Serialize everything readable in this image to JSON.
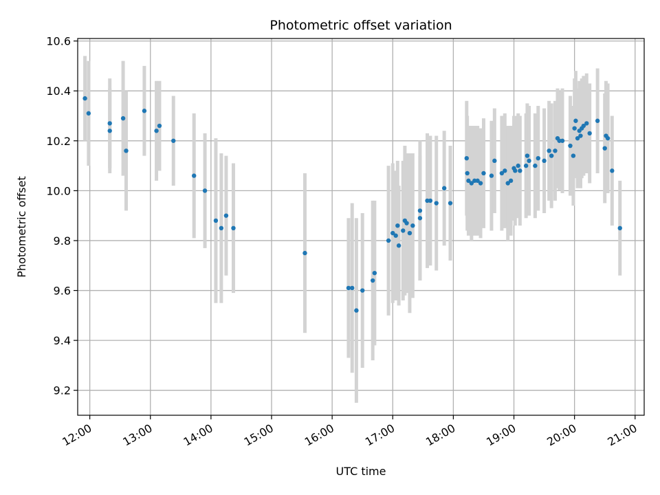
{
  "chart_data": {
    "type": "scatter",
    "title": "Photometric offset variation",
    "xlabel": "UTC time",
    "ylabel": "Photometric offset",
    "x_unit": "hours UTC",
    "xlim": [
      11.8,
      21.15
    ],
    "ylim": [
      9.1,
      10.61
    ],
    "grid": true,
    "legend": "none",
    "x_ticks": [
      {
        "value": 12,
        "label": "12:00"
      },
      {
        "value": 13,
        "label": "13:00"
      },
      {
        "value": 14,
        "label": "14:00"
      },
      {
        "value": 15,
        "label": "15:00"
      },
      {
        "value": 16,
        "label": "16:00"
      },
      {
        "value": 17,
        "label": "17:00"
      },
      {
        "value": 18,
        "label": "18:00"
      },
      {
        "value": 19,
        "label": "19:00"
      },
      {
        "value": 20,
        "label": "20:00"
      },
      {
        "value": 21,
        "label": "21:00"
      }
    ],
    "y_ticks": [
      {
        "value": 9.2,
        "label": "9.2"
      },
      {
        "value": 9.4,
        "label": "9.4"
      },
      {
        "value": 9.6,
        "label": "9.6"
      },
      {
        "value": 9.8,
        "label": "9.8"
      },
      {
        "value": 10.0,
        "label": "10.0"
      },
      {
        "value": 10.2,
        "label": "10.2"
      },
      {
        "value": 10.4,
        "label": "10.4"
      },
      {
        "value": 10.6,
        "label": "10.6"
      }
    ],
    "colors": {
      "point": "#1f77b4",
      "errorbar": "#d3d3d3",
      "grid": "#b0b0b0",
      "axis": "#000000"
    },
    "series": [
      {
        "name": "offset",
        "points": [
          [
            11.92,
            10.37,
            0.17
          ],
          [
            11.98,
            10.31,
            0.21
          ],
          [
            12.33,
            10.27,
            0.18
          ],
          [
            12.33,
            10.24,
            0.17
          ],
          [
            12.55,
            10.29,
            0.23
          ],
          [
            12.6,
            10.16,
            0.24
          ],
          [
            12.9,
            10.32,
            0.18
          ],
          [
            13.1,
            10.24,
            0.2
          ],
          [
            13.15,
            10.26,
            0.18
          ],
          [
            13.38,
            10.2,
            0.18
          ],
          [
            13.72,
            10.06,
            0.25
          ],
          [
            13.9,
            10.0,
            0.23
          ],
          [
            14.08,
            9.88,
            0.33
          ],
          [
            14.17,
            9.85,
            0.3
          ],
          [
            14.25,
            9.9,
            0.24
          ],
          [
            14.37,
            9.85,
            0.26
          ],
          [
            15.55,
            9.75,
            0.32
          ],
          [
            16.27,
            9.61,
            0.28
          ],
          [
            16.33,
            9.61,
            0.34
          ],
          [
            16.4,
            9.52,
            0.37
          ],
          [
            16.5,
            9.6,
            0.31
          ],
          [
            16.67,
            9.64,
            0.32
          ],
          [
            16.7,
            9.67,
            0.29
          ],
          [
            16.93,
            9.8,
            0.3
          ],
          [
            17.0,
            9.83,
            0.28
          ],
          [
            17.05,
            9.82,
            0.26
          ],
          [
            17.08,
            9.86,
            0.26
          ],
          [
            17.1,
            9.78,
            0.24
          ],
          [
            17.17,
            9.84,
            0.28
          ],
          [
            17.2,
            9.88,
            0.3
          ],
          [
            17.23,
            9.87,
            0.28
          ],
          [
            17.28,
            9.83,
            0.32
          ],
          [
            17.33,
            9.86,
            0.29
          ],
          [
            17.45,
            9.89,
            0.25
          ],
          [
            17.45,
            9.92,
            0.28
          ],
          [
            17.57,
            9.96,
            0.27
          ],
          [
            17.62,
            9.96,
            0.26
          ],
          [
            17.72,
            9.95,
            0.27
          ],
          [
            17.85,
            10.01,
            0.23
          ],
          [
            17.95,
            9.95,
            0.23
          ],
          [
            18.22,
            10.13,
            0.23
          ],
          [
            18.23,
            10.07,
            0.23
          ],
          [
            18.25,
            10.04,
            0.22
          ],
          [
            18.3,
            10.03,
            0.23
          ],
          [
            18.35,
            10.04,
            0.22
          ],
          [
            18.4,
            10.04,
            0.22
          ],
          [
            18.45,
            10.03,
            0.22
          ],
          [
            18.5,
            10.07,
            0.22
          ],
          [
            18.63,
            10.06,
            0.22
          ],
          [
            18.68,
            10.12,
            0.21
          ],
          [
            18.8,
            10.07,
            0.23
          ],
          [
            18.85,
            10.08,
            0.23
          ],
          [
            18.9,
            10.03,
            0.23
          ],
          [
            18.95,
            10.04,
            0.22
          ],
          [
            19.0,
            10.09,
            0.21
          ],
          [
            19.02,
            10.08,
            0.22
          ],
          [
            19.07,
            10.1,
            0.21
          ],
          [
            19.1,
            10.08,
            0.22
          ],
          [
            19.2,
            10.1,
            0.21
          ],
          [
            19.22,
            10.14,
            0.21
          ],
          [
            19.25,
            10.12,
            0.22
          ],
          [
            19.35,
            10.1,
            0.21
          ],
          [
            19.4,
            10.13,
            0.21
          ],
          [
            19.5,
            10.12,
            0.21
          ],
          [
            19.58,
            10.16,
            0.2
          ],
          [
            19.62,
            10.14,
            0.21
          ],
          [
            19.68,
            10.16,
            0.2
          ],
          [
            19.72,
            10.21,
            0.2
          ],
          [
            19.75,
            10.2,
            0.2
          ],
          [
            19.8,
            10.2,
            0.21
          ],
          [
            19.93,
            10.18,
            0.2
          ],
          [
            19.98,
            10.14,
            0.2
          ],
          [
            20.0,
            10.25,
            0.2
          ],
          [
            20.02,
            10.28,
            0.2
          ],
          [
            20.05,
            10.21,
            0.2
          ],
          [
            20.08,
            10.24,
            0.2
          ],
          [
            20.1,
            10.22,
            0.21
          ],
          [
            20.12,
            10.25,
            0.2
          ],
          [
            20.15,
            10.26,
            0.2
          ],
          [
            20.2,
            10.27,
            0.2
          ],
          [
            20.25,
            10.23,
            0.2
          ],
          [
            20.38,
            10.28,
            0.21
          ],
          [
            20.5,
            10.17,
            0.22
          ],
          [
            20.52,
            10.22,
            0.22
          ],
          [
            20.55,
            10.21,
            0.22
          ],
          [
            20.62,
            10.08,
            0.22
          ],
          [
            20.75,
            9.85,
            0.19
          ]
        ]
      }
    ]
  }
}
